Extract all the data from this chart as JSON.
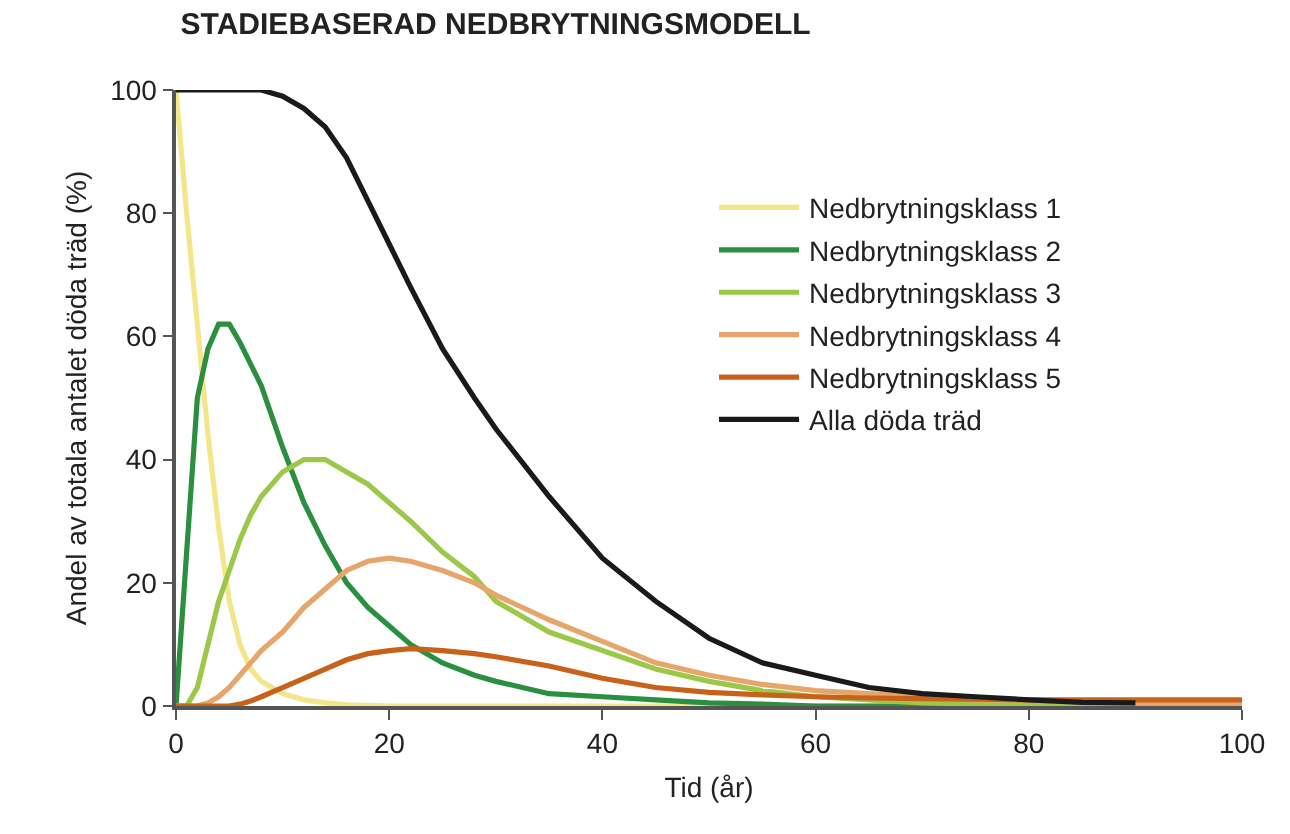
{
  "chart_data": {
    "type": "line",
    "title": "STADIEBASERAD NEDBRYTNINGSMODELL",
    "xlabel": "Tid (år)",
    "ylabel": "Andel av totala antalet döda träd (%)",
    "xlim": [
      0,
      100
    ],
    "xticks": [
      0,
      20,
      40,
      60,
      80,
      100
    ],
    "ylim": [
      0,
      100
    ],
    "yticks": [
      0,
      20,
      40,
      60,
      80,
      100
    ],
    "legend": "top right",
    "marker": "none",
    "line_style": "solid",
    "series": [
      {
        "name": "Nedbrytningsklass 1",
        "color": "#f3e58a",
        "x": [
          0,
          1,
          2,
          3,
          4,
          5,
          6,
          7,
          8,
          10,
          12,
          14,
          16,
          20,
          40,
          60,
          80,
          100
        ],
        "values": [
          100,
          80,
          62,
          44,
          29,
          17,
          10,
          6,
          4,
          2,
          1,
          0.5,
          0.2,
          0,
          0,
          0,
          0,
          0
        ]
      },
      {
        "name": "Nedbrytningsklass 2",
        "color": "#2a9040",
        "x": [
          0,
          1,
          2,
          3,
          4,
          5,
          6,
          8,
          10,
          12,
          14,
          16,
          18,
          20,
          22,
          25,
          28,
          30,
          35,
          40,
          45,
          50,
          55,
          60,
          80,
          100
        ],
        "values": [
          0,
          25,
          50,
          58,
          62,
          62,
          59,
          52,
          42,
          33,
          26,
          20,
          16,
          13,
          10,
          7,
          5,
          4,
          2,
          1.5,
          1,
          0.5,
          0.3,
          0,
          0,
          0
        ]
      },
      {
        "name": "Nedbrytningsklass 3",
        "color": "#9cc84a",
        "x": [
          0,
          1,
          2,
          3,
          4,
          5,
          6,
          7,
          8,
          10,
          12,
          14,
          16,
          18,
          20,
          22,
          25,
          28,
          30,
          35,
          40,
          45,
          50,
          55,
          60,
          65,
          70,
          80,
          90,
          100
        ],
        "values": [
          0,
          0,
          3,
          10,
          17,
          22,
          27,
          31,
          34,
          38,
          40,
          40,
          38,
          36,
          33,
          30,
          25,
          21,
          17,
          12,
          9,
          6,
          4,
          2.5,
          1.5,
          1,
          0.5,
          0.2,
          0,
          0
        ]
      },
      {
        "name": "Nedbrytningsklass 4",
        "color": "#e6a56a",
        "x": [
          0,
          2,
          3,
          4,
          5,
          6,
          7,
          8,
          10,
          12,
          14,
          16,
          18,
          20,
          22,
          25,
          28,
          30,
          35,
          40,
          45,
          50,
          55,
          60,
          65,
          70,
          75,
          80,
          90,
          100
        ],
        "values": [
          0,
          0,
          0.5,
          1.5,
          3,
          5,
          7,
          9,
          12,
          16,
          19,
          22,
          23.5,
          24,
          23.5,
          22,
          20,
          18,
          14,
          10.5,
          7,
          5,
          3.5,
          2.5,
          2,
          1.5,
          1,
          1,
          0.5,
          0.3
        ]
      },
      {
        "name": "Nedbrytningsklass 5",
        "color": "#c8621a",
        "x": [
          0,
          5,
          6,
          7,
          8,
          10,
          12,
          14,
          16,
          18,
          20,
          22,
          25,
          28,
          30,
          35,
          40,
          45,
          50,
          55,
          60,
          65,
          70,
          80,
          90,
          100
        ],
        "values": [
          0,
          0,
          0.3,
          0.8,
          1.5,
          3,
          4.5,
          6,
          7.5,
          8.5,
          9,
          9.3,
          9,
          8.5,
          8,
          6.5,
          4.5,
          3,
          2.2,
          1.8,
          1.5,
          1.3,
          1.2,
          1,
          1,
          1
        ]
      },
      {
        "name": "Alla döda träd",
        "color": "#1a1a1a",
        "x": [
          0,
          5,
          8,
          10,
          12,
          14,
          16,
          18,
          20,
          22,
          25,
          28,
          30,
          35,
          40,
          45,
          50,
          55,
          60,
          65,
          70,
          75,
          80,
          85,
          90
        ],
        "values": [
          100,
          100,
          100,
          99,
          97,
          94,
          89,
          82,
          75,
          68,
          58,
          50,
          45,
          34,
          24,
          17,
          11,
          7,
          5,
          3,
          2,
          1.5,
          1,
          0.6,
          0.5
        ]
      }
    ]
  }
}
